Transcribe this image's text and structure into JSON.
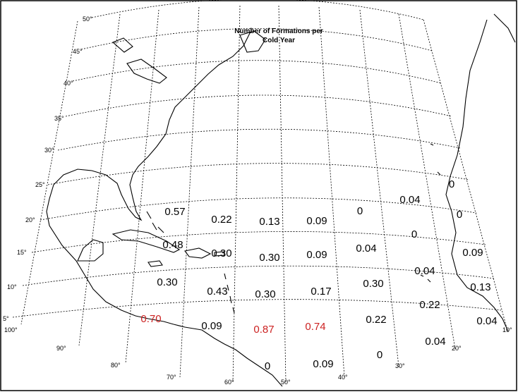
{
  "title_lines": [
    "Number of Formations per",
    "Cold Year"
  ],
  "lat_labels": [
    "50°",
    "45°",
    "40°",
    "35°",
    "30°",
    "25°",
    "20°",
    "15°",
    "10°",
    "5°"
  ],
  "lon_labels": [
    "100°",
    "90°",
    "80°",
    "70°",
    "60°",
    "50°",
    "40°",
    "30°",
    "20°",
    "10°"
  ],
  "values": [
    "0.57",
    "0.22",
    "0.13",
    "0.09",
    "0",
    "0.04",
    "0",
    "0",
    "0.48",
    "0.30",
    "0.30",
    "0.09",
    "0.04",
    "0",
    "0.09",
    "0.30",
    "0.43",
    "0.30",
    "0.17",
    "0.30",
    "0.04",
    "0.13",
    "0.70",
    "0.09",
    "0.87",
    "0.74",
    "0.22",
    "0.22",
    "0.04",
    "0",
    "0.04",
    "0",
    "0.09"
  ],
  "highlight_color": "#cc2222"
}
